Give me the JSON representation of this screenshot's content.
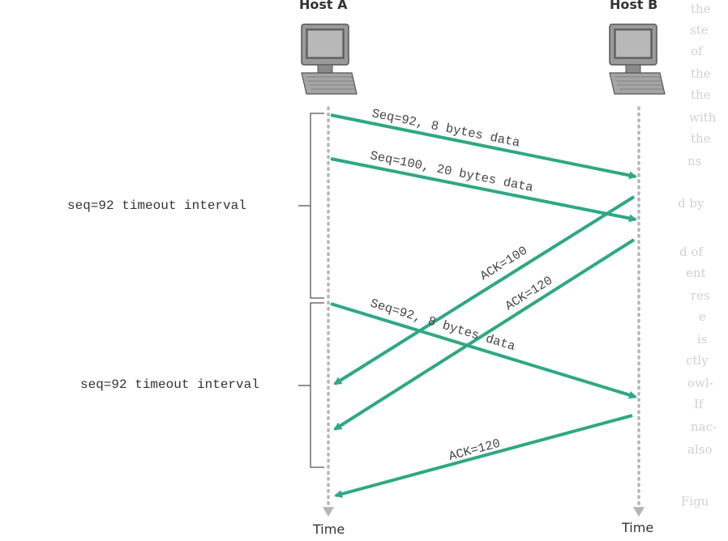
{
  "hosts": {
    "a": {
      "label": "Host A"
    },
    "b": {
      "label": "Host B"
    }
  },
  "timelines": {
    "a_label": "Time",
    "b_label": "Time"
  },
  "intervals": [
    {
      "label": "seq=92 timeout interval"
    },
    {
      "label": "seq=92 timeout interval"
    }
  ],
  "messages": [
    {
      "label": "Seq=92, 8 bytes data",
      "direction": "A-to-B"
    },
    {
      "label": "Seq=100, 20 bytes data",
      "direction": "A-to-B"
    },
    {
      "label": "ACK=100",
      "direction": "B-to-A"
    },
    {
      "label": "ACK=120",
      "direction": "B-to-A"
    },
    {
      "label": "Seq=92, 8 bytes data",
      "direction": "A-to-B"
    },
    {
      "label": "ACK=120",
      "direction": "B-to-A"
    }
  ],
  "colors": {
    "arrow": "#2fa882",
    "timeline": "#b5b5b5",
    "text": "#333333"
  },
  "icons": {
    "host": "desktop-computer-icon",
    "timeline_end": "triangle-down-icon"
  },
  "background_text": {
    "right_margin": [
      "the",
      "ste",
      "of",
      "the",
      "the",
      "with",
      "the",
      "ns",
      "d by",
      "d of",
      "ent",
      "res",
      "e",
      "is",
      "ctly",
      "owl-",
      "If",
      "nac-",
      "also",
      "Figu"
    ]
  }
}
